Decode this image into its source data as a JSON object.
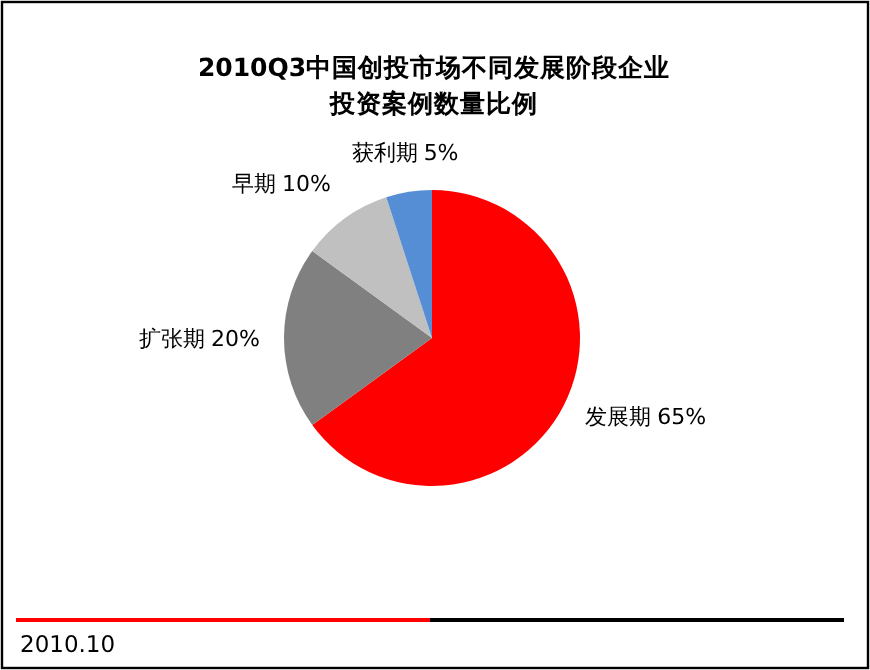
{
  "chart_data": {
    "type": "pie",
    "title": "2010Q3中国创投市场不同发展阶段企业投资案例数量比例",
    "categories": [
      "发展期",
      "扩张期",
      "早期",
      "获利期"
    ],
    "values": [
      65,
      20,
      10,
      5
    ],
    "colors": [
      "#ff0000",
      "#808080",
      "#c0c0c0",
      "#558ed5"
    ],
    "value_labels": [
      "65%",
      "20%",
      "10%",
      "5%"
    ],
    "annotations": [
      "2010.10"
    ]
  }
}
